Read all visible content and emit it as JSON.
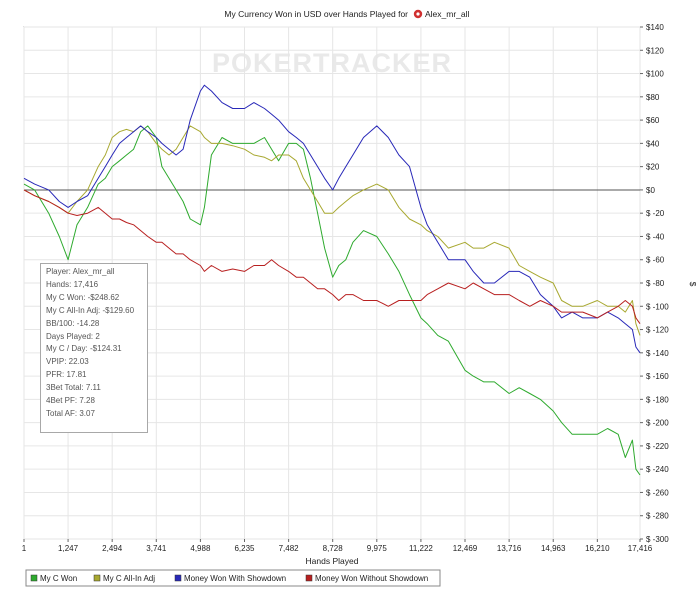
{
  "chart_data": {
    "type": "line",
    "title": "My Currency Won in USD over Hands Played for",
    "player_name": "Alex_mr_all",
    "watermark": "POKERTRACKER",
    "xlabel": "Hands Played",
    "ylabel": "$",
    "xlim": [
      1,
      17416
    ],
    "ylim": [
      -300,
      140
    ],
    "x_ticks": [
      1,
      1247,
      2494,
      3741,
      4988,
      6235,
      7482,
      8728,
      9975,
      11222,
      12469,
      13716,
      14963,
      16210,
      17416
    ],
    "x_tick_labels": [
      "1",
      "1,247",
      "2,494",
      "3,741",
      "4,988",
      "6,235",
      "7,482",
      "8,728",
      "9,975",
      "11,222",
      "12,469",
      "13,716",
      "14,963",
      "16,210",
      "17,416"
    ],
    "y_ticks": [
      140,
      120,
      100,
      80,
      60,
      40,
      20,
      0,
      -20,
      -40,
      -60,
      -80,
      -100,
      -120,
      -140,
      -160,
      -180,
      -200,
      -220,
      -240,
      -260,
      -280,
      -300
    ],
    "y_tick_labels": [
      "$140",
      "$120",
      "$100",
      "$80",
      "$60",
      "$40",
      "$20",
      "$0",
      "$ -20",
      "$ -40",
      "$ -60",
      "$ -80",
      "$ -100",
      "$ -120",
      "$ -140",
      "$ -160",
      "$ -180",
      "$ -200",
      "$ -220",
      "$ -240",
      "$ -260",
      "$ -280",
      "$ -300"
    ],
    "grid": true,
    "legend_position": "bottom",
    "series": [
      {
        "name": "My C Won",
        "color": "#2eaa2e",
        "x": [
          1,
          300,
          700,
          1000,
          1247,
          1500,
          1800,
          2100,
          2300,
          2494,
          2700,
          2900,
          3100,
          3300,
          3500,
          3741,
          3900,
          4100,
          4300,
          4500,
          4700,
          4988,
          5100,
          5300,
          5600,
          5900,
          6235,
          6500,
          6800,
          7000,
          7200,
          7482,
          7700,
          7900,
          8100,
          8300,
          8500,
          8728,
          8900,
          9100,
          9300,
          9600,
          9975,
          10300,
          10600,
          10900,
          11222,
          11400,
          11700,
          12000,
          12469,
          12700,
          13000,
          13300,
          13716,
          14000,
          14300,
          14600,
          14963,
          15200,
          15500,
          15800,
          16210,
          16500,
          16800,
          17000,
          17200,
          17300,
          17416
        ],
        "values": [
          5,
          0,
          -20,
          -40,
          -60,
          -30,
          -15,
          5,
          10,
          20,
          25,
          30,
          35,
          50,
          55,
          45,
          20,
          10,
          0,
          -10,
          -25,
          -30,
          -15,
          30,
          45,
          40,
          40,
          40,
          45,
          35,
          25,
          40,
          40,
          35,
          10,
          -20,
          -50,
          -75,
          -65,
          -60,
          -45,
          -35,
          -40,
          -55,
          -70,
          -90,
          -110,
          -115,
          -125,
          -130,
          -155,
          -160,
          -165,
          -165,
          -175,
          -170,
          -175,
          -180,
          -190,
          -200,
          -210,
          -210,
          -210,
          -205,
          -210,
          -230,
          -215,
          -240,
          -245
        ]
      },
      {
        "name": "My C All-In Adj",
        "color": "#a8a830",
        "x": [
          1,
          300,
          700,
          1000,
          1247,
          1500,
          1800,
          2100,
          2300,
          2494,
          2700,
          2900,
          3100,
          3300,
          3500,
          3741,
          3900,
          4100,
          4300,
          4500,
          4700,
          4988,
          5100,
          5300,
          5600,
          5900,
          6235,
          6500,
          6800,
          7000,
          7200,
          7482,
          7700,
          7900,
          8100,
          8300,
          8500,
          8728,
          8900,
          9100,
          9300,
          9600,
          9975,
          10300,
          10600,
          10900,
          11222,
          11400,
          11700,
          12000,
          12469,
          12700,
          13000,
          13300,
          13716,
          14000,
          14300,
          14600,
          14963,
          15200,
          15500,
          15800,
          16210,
          16500,
          16800,
          17000,
          17200,
          17300,
          17416
        ],
        "values": [
          0,
          -5,
          -10,
          -15,
          -20,
          -10,
          0,
          20,
          30,
          45,
          50,
          52,
          50,
          55,
          50,
          40,
          35,
          30,
          35,
          45,
          55,
          50,
          45,
          40,
          40,
          38,
          35,
          30,
          28,
          25,
          30,
          30,
          25,
          10,
          0,
          -10,
          -20,
          -20,
          -15,
          -10,
          -5,
          0,
          5,
          0,
          -15,
          -25,
          -30,
          -35,
          -40,
          -50,
          -45,
          -50,
          -50,
          -45,
          -50,
          -65,
          -70,
          -75,
          -80,
          -95,
          -100,
          -100,
          -95,
          -100,
          -100,
          -105,
          -95,
          -115,
          -125
        ]
      },
      {
        "name": "Money Won With Showdown",
        "color": "#2828b8",
        "x": [
          1,
          300,
          700,
          1000,
          1247,
          1500,
          1800,
          2100,
          2300,
          2494,
          2700,
          2900,
          3100,
          3300,
          3500,
          3741,
          3900,
          4100,
          4300,
          4500,
          4700,
          4988,
          5100,
          5300,
          5600,
          5900,
          6235,
          6500,
          6800,
          7000,
          7200,
          7482,
          7700,
          7900,
          8100,
          8300,
          8500,
          8728,
          8900,
          9100,
          9300,
          9600,
          9975,
          10300,
          10600,
          10900,
          11222,
          11400,
          11700,
          12000,
          12469,
          12700,
          13000,
          13300,
          13716,
          14000,
          14300,
          14600,
          14963,
          15200,
          15500,
          15800,
          16210,
          16500,
          16800,
          17000,
          17200,
          17300,
          17416
        ],
        "values": [
          10,
          5,
          0,
          -10,
          -15,
          -10,
          -5,
          10,
          20,
          30,
          40,
          45,
          50,
          55,
          50,
          45,
          40,
          35,
          30,
          35,
          60,
          85,
          90,
          85,
          75,
          70,
          70,
          75,
          70,
          65,
          60,
          50,
          45,
          40,
          30,
          20,
          10,
          0,
          10,
          20,
          30,
          45,
          55,
          45,
          30,
          20,
          -15,
          -30,
          -45,
          -60,
          -60,
          -70,
          -80,
          -80,
          -70,
          -70,
          -75,
          -90,
          -100,
          -110,
          -105,
          -110,
          -110,
          -105,
          -110,
          -115,
          -120,
          -135,
          -140
        ]
      },
      {
        "name": "Money Won Without Showdown",
        "color": "#b82020",
        "x": [
          1,
          300,
          700,
          1000,
          1247,
          1500,
          1800,
          2100,
          2300,
          2494,
          2700,
          2900,
          3100,
          3300,
          3500,
          3741,
          3900,
          4100,
          4300,
          4500,
          4700,
          4988,
          5100,
          5300,
          5600,
          5900,
          6235,
          6500,
          6800,
          7000,
          7200,
          7482,
          7700,
          7900,
          8100,
          8300,
          8500,
          8728,
          8900,
          9100,
          9300,
          9600,
          9975,
          10300,
          10600,
          10900,
          11222,
          11400,
          11700,
          12000,
          12469,
          12700,
          13000,
          13300,
          13716,
          14000,
          14300,
          14600,
          14963,
          15200,
          15500,
          15800,
          16210,
          16500,
          16800,
          17000,
          17200,
          17300,
          17416
        ],
        "values": [
          0,
          -5,
          -10,
          -15,
          -20,
          -22,
          -20,
          -15,
          -20,
          -25,
          -25,
          -28,
          -30,
          -35,
          -40,
          -45,
          -45,
          -50,
          -55,
          -55,
          -60,
          -65,
          -70,
          -65,
          -70,
          -68,
          -70,
          -65,
          -65,
          -60,
          -65,
          -70,
          -75,
          -75,
          -80,
          -85,
          -85,
          -90,
          -95,
          -90,
          -90,
          -95,
          -95,
          -100,
          -95,
          -95,
          -95,
          -90,
          -85,
          -80,
          -85,
          -80,
          -85,
          -90,
          -90,
          -95,
          -100,
          -95,
          -100,
          -105,
          -105,
          -105,
          -110,
          -105,
          -100,
          -95,
          -100,
          -110,
          -115
        ]
      }
    ]
  },
  "stats": {
    "lines": [
      "Player: Alex_mr_all",
      "Hands: 17,416",
      "My C Won: -$248.62",
      "My C All-In Adj: -$129.60",
      "BB/100: -14.28",
      "Days Played: 2",
      "My C / Day: -$124.31",
      "VPIP: 22.03",
      "PFR: 17.81",
      "3Bet Total: 7.11",
      "4Bet PF: 7.28",
      "Total AF: 3.07"
    ]
  }
}
